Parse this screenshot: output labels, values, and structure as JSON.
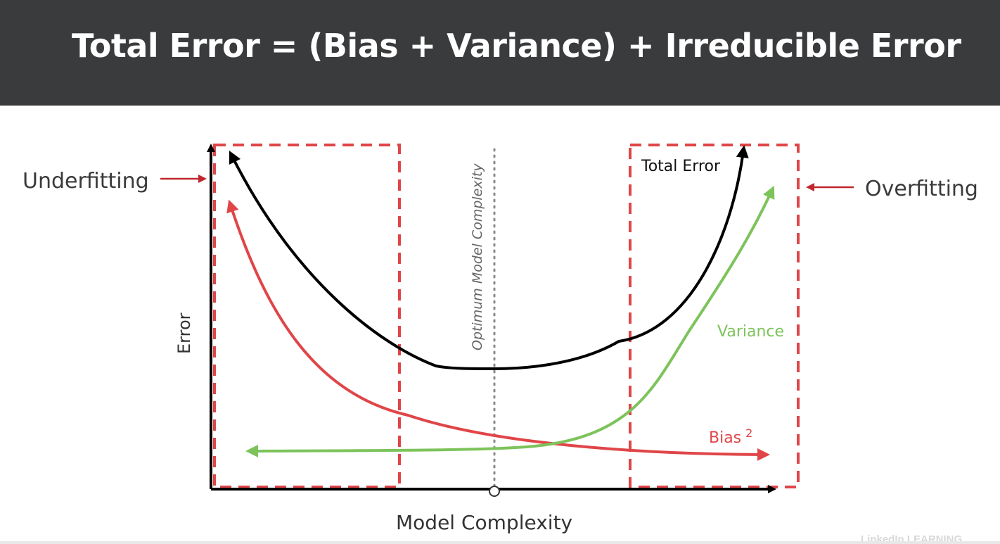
{
  "header": {
    "title": "Total Error = (Bias + Variance) + Irreducible Error"
  },
  "diagram": {
    "y_axis_label": "Error",
    "x_axis_label": "Model Complexity",
    "optimum_label": "Optimum Model Complexity",
    "underfitting_label": "Underfitting",
    "overfitting_label": "Overfitting",
    "total_error_label": "Total Error",
    "variance_label": "Variance",
    "bias_label": "Bias",
    "bias_superscript": "2"
  },
  "colors": {
    "header_bg": "#3a3b3d",
    "total_error": "#000000",
    "variance": "#7dc35b",
    "bias": "#e04548",
    "box": "#e04548",
    "arrow": "#c0272d",
    "optimum_line": "#8a8a8a"
  },
  "watermark": {
    "text": "LinkedIn LEARNING"
  }
}
